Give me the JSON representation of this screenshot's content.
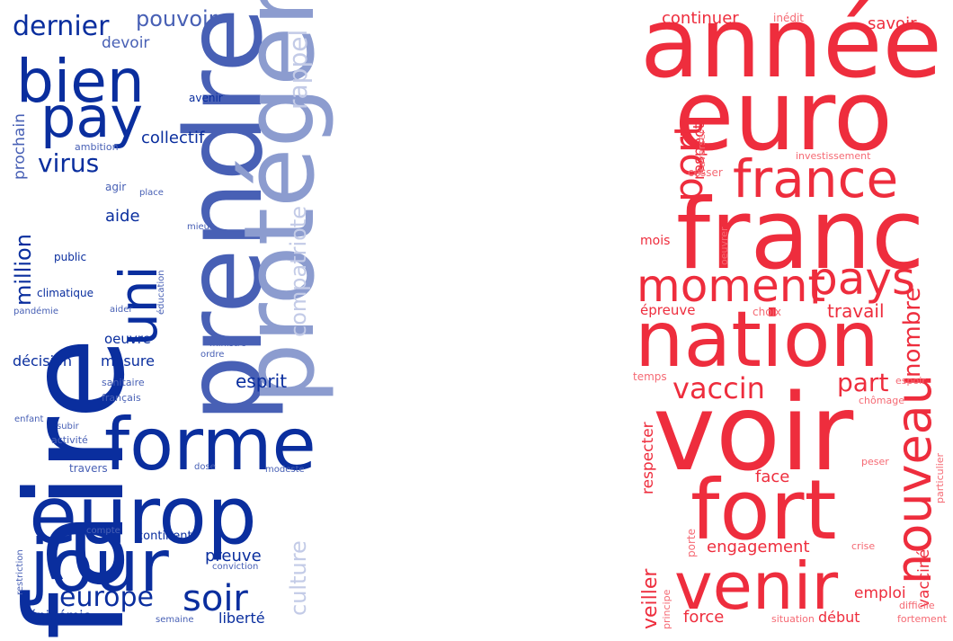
{
  "palette": {
    "blue_dark": "#0a2e9e",
    "blue_mid": "#4860b5",
    "blue_soft": "#8c9ccf",
    "blue_pale": "#c3cbe7",
    "red": "#ee2d3d",
    "red_light": "#f56a74"
  },
  "left_cloud": {
    "words": [
      "faire",
      "prendre",
      "protéger",
      "europ",
      "forme",
      "jour",
      "bien",
      "pay",
      "uni",
      "soir",
      "europe",
      "dernier",
      "pouvoir",
      "devoir",
      "rappel",
      "virus",
      "collectif",
      "compatriote",
      "culture",
      "million",
      "prochain",
      "ambition",
      "avenir",
      "agir",
      "place",
      "aide",
      "mieux",
      "public",
      "éducation",
      "climatique",
      "pandémie",
      "aider",
      "oeuvre",
      "ministre",
      "ordre",
      "décision",
      "mesure",
      "sanitaire",
      "français",
      "esprit",
      "enfant",
      "subir",
      "activité",
      "travers",
      "dose",
      "modeste",
      "compte",
      "continent",
      "preuve",
      "conviction",
      "restriction",
      "épidémie",
      "semaine",
      "liberté"
    ]
  },
  "right_cloud": {
    "words": [
      "année",
      "euro",
      "franc",
      "france",
      "nation",
      "voir",
      "fort",
      "venir",
      "nouveau",
      "pays",
      "moment",
      "port",
      "vaccin",
      "part",
      "continuer",
      "inédit",
      "savoir",
      "respect",
      "traverser",
      "investissement",
      "cesser",
      "mois",
      "oeuvrer",
      "épreuve",
      "choix",
      "travail",
      "nombre",
      "temps",
      "espoir",
      "chômage",
      "respecter",
      "face",
      "peser",
      "particulier",
      "veiller",
      "porte",
      "engagement",
      "crise",
      "vacciné",
      "emploi",
      "principe",
      "force",
      "situation",
      "début",
      "difficile",
      "fortement"
    ]
  }
}
